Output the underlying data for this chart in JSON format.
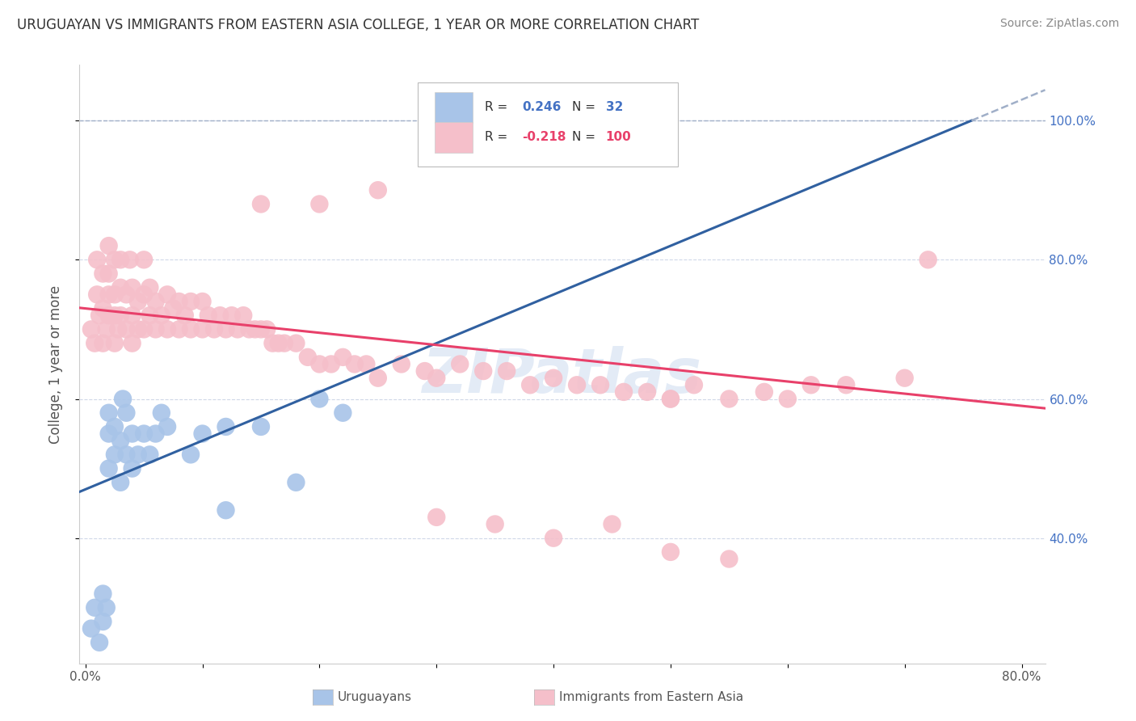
{
  "title": "URUGUAYAN VS IMMIGRANTS FROM EASTERN ASIA COLLEGE, 1 YEAR OR MORE CORRELATION CHART",
  "source": "Source: ZipAtlas.com",
  "xlabel_legend1": "Uruguayans",
  "xlabel_legend2": "Immigrants from Eastern Asia",
  "ylabel": "College, 1 year or more",
  "watermark": "ZIPatlas",
  "xlim": [
    -0.005,
    0.82
  ],
  "ylim": [
    0.22,
    1.08
  ],
  "xticks": [
    0.0,
    0.1,
    0.2,
    0.3,
    0.4,
    0.5,
    0.6,
    0.7,
    0.8
  ],
  "xticklabels": [
    "0.0%",
    "",
    "",
    "",
    "",
    "",
    "",
    "",
    "80.0%"
  ],
  "ytick_vals": [
    0.4,
    0.6,
    0.8,
    1.0
  ],
  "ytick_labels": [
    "40.0%",
    "60.0%",
    "80.0%",
    "100.0%"
  ],
  "blue_color": "#a8c4e8",
  "pink_color": "#f5bfca",
  "blue_line_color": "#3060a0",
  "pink_line_color": "#e8406a",
  "dashed_line_color": "#a0afc8",
  "grid_color": "#d0d8e8",
  "legend_R1_val": "0.246",
  "legend_N1_val": "32",
  "legend_R2_val": "-0.218",
  "legend_N2_val": "100",
  "background_color": "#ffffff",
  "ytick_color": "#4472c4",
  "blue_line_intercept": 0.47,
  "blue_line_slope": 0.7,
  "pink_line_intercept": 0.73,
  "pink_line_slope": -0.175,
  "uruguayan_x": [
    0.005,
    0.008,
    0.012,
    0.015,
    0.015,
    0.018,
    0.02,
    0.02,
    0.02,
    0.025,
    0.025,
    0.03,
    0.03,
    0.032,
    0.035,
    0.035,
    0.04,
    0.04,
    0.045,
    0.05,
    0.055,
    0.06,
    0.065,
    0.07,
    0.09,
    0.1,
    0.12,
    0.15,
    0.2,
    0.22,
    0.18,
    0.12
  ],
  "uruguayan_y": [
    0.27,
    0.3,
    0.25,
    0.28,
    0.32,
    0.3,
    0.5,
    0.55,
    0.58,
    0.52,
    0.56,
    0.48,
    0.54,
    0.6,
    0.52,
    0.58,
    0.5,
    0.55,
    0.52,
    0.55,
    0.52,
    0.55,
    0.58,
    0.56,
    0.52,
    0.55,
    0.56,
    0.56,
    0.6,
    0.58,
    0.48,
    0.44
  ],
  "eastern_asia_x": [
    0.005,
    0.008,
    0.01,
    0.01,
    0.012,
    0.015,
    0.015,
    0.015,
    0.018,
    0.02,
    0.02,
    0.02,
    0.02,
    0.025,
    0.025,
    0.025,
    0.025,
    0.028,
    0.03,
    0.03,
    0.03,
    0.035,
    0.035,
    0.038,
    0.04,
    0.04,
    0.04,
    0.045,
    0.045,
    0.05,
    0.05,
    0.05,
    0.055,
    0.055,
    0.06,
    0.06,
    0.065,
    0.07,
    0.07,
    0.075,
    0.08,
    0.08,
    0.085,
    0.09,
    0.09,
    0.1,
    0.1,
    0.105,
    0.11,
    0.115,
    0.12,
    0.125,
    0.13,
    0.135,
    0.14,
    0.145,
    0.15,
    0.155,
    0.16,
    0.165,
    0.17,
    0.18,
    0.19,
    0.2,
    0.21,
    0.22,
    0.23,
    0.24,
    0.25,
    0.27,
    0.29,
    0.3,
    0.32,
    0.34,
    0.36,
    0.38,
    0.4,
    0.42,
    0.44,
    0.46,
    0.48,
    0.5,
    0.52,
    0.55,
    0.58,
    0.6,
    0.62,
    0.65,
    0.7,
    0.72,
    0.3,
    0.35,
    0.4,
    0.45,
    0.5,
    0.55,
    0.25,
    0.2,
    0.15,
    0.5
  ],
  "eastern_asia_y": [
    0.7,
    0.68,
    0.75,
    0.8,
    0.72,
    0.68,
    0.73,
    0.78,
    0.7,
    0.72,
    0.75,
    0.78,
    0.82,
    0.68,
    0.72,
    0.75,
    0.8,
    0.7,
    0.72,
    0.76,
    0.8,
    0.7,
    0.75,
    0.8,
    0.68,
    0.72,
    0.76,
    0.7,
    0.74,
    0.7,
    0.75,
    0.8,
    0.72,
    0.76,
    0.7,
    0.74,
    0.72,
    0.7,
    0.75,
    0.73,
    0.7,
    0.74,
    0.72,
    0.7,
    0.74,
    0.7,
    0.74,
    0.72,
    0.7,
    0.72,
    0.7,
    0.72,
    0.7,
    0.72,
    0.7,
    0.7,
    0.7,
    0.7,
    0.68,
    0.68,
    0.68,
    0.68,
    0.66,
    0.65,
    0.65,
    0.66,
    0.65,
    0.65,
    0.63,
    0.65,
    0.64,
    0.63,
    0.65,
    0.64,
    0.64,
    0.62,
    0.63,
    0.62,
    0.62,
    0.61,
    0.61,
    0.6,
    0.62,
    0.6,
    0.61,
    0.6,
    0.62,
    0.62,
    0.63,
    0.8,
    0.43,
    0.42,
    0.4,
    0.42,
    0.38,
    0.37,
    0.9,
    0.88,
    0.88,
    0.6
  ],
  "title_fontsize": 12,
  "axis_label_fontsize": 12,
  "tick_fontsize": 11
}
